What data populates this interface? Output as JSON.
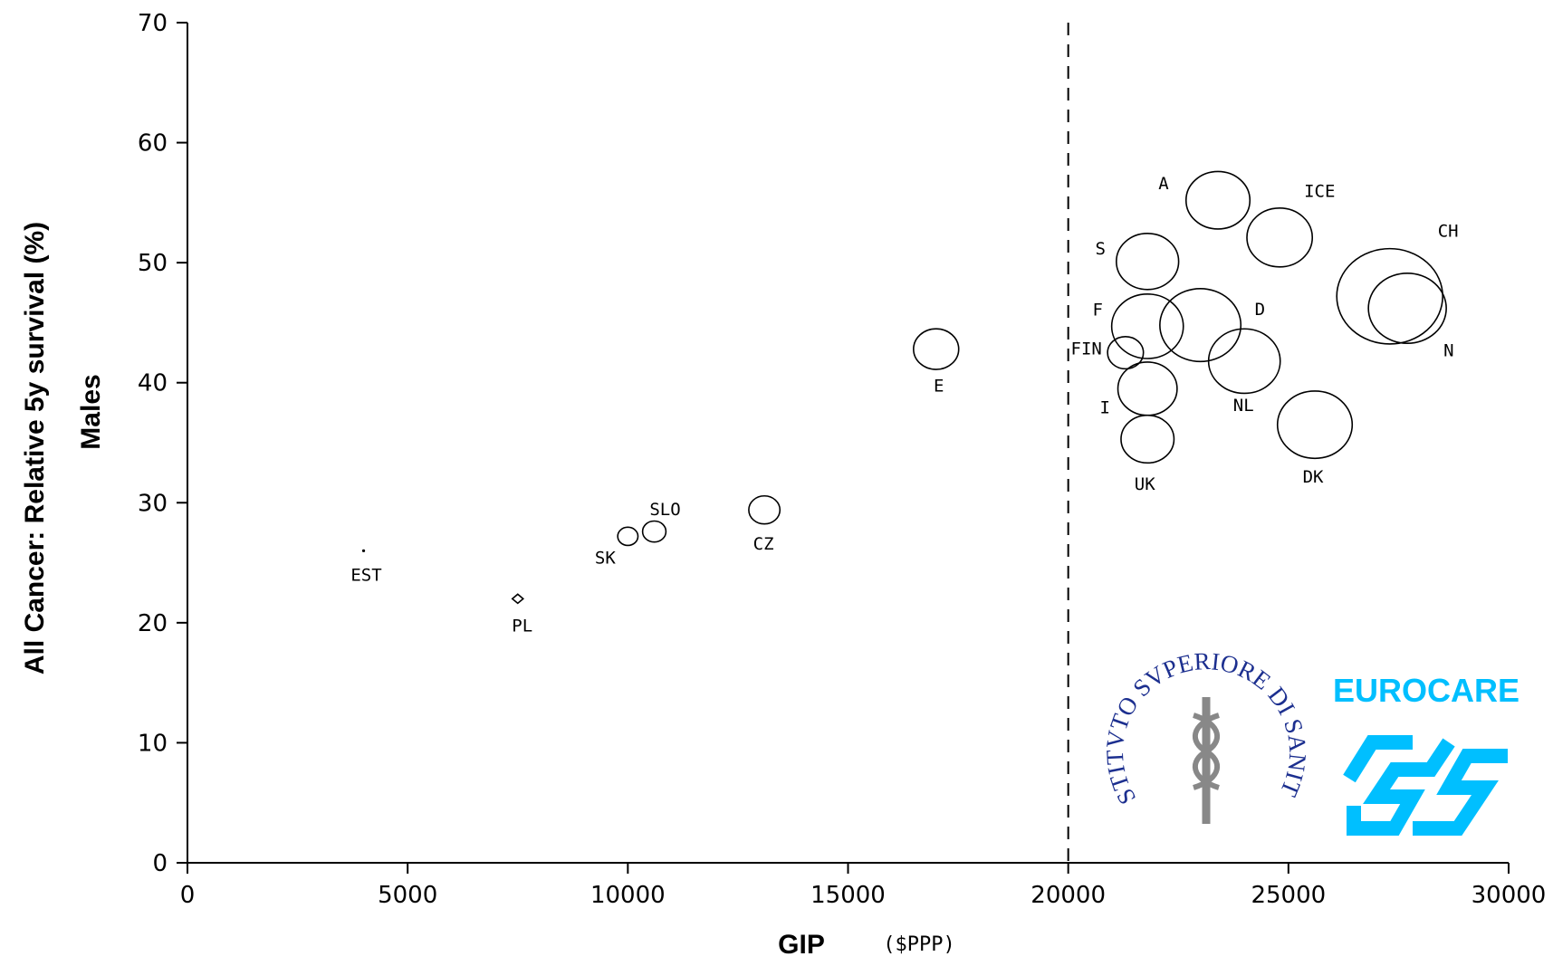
{
  "chart_data": {
    "type": "scatter",
    "subtype": "bubble",
    "ylabel_line1": "All Cancer: Relative 5y survival (%)",
    "ylabel_line2": "Males",
    "xlabel": "GIP",
    "xlabel_unit": "($PPP)",
    "xlim": [
      0,
      30000
    ],
    "ylim": [
      0,
      70
    ],
    "x_ticks": [
      0,
      5000,
      10000,
      15000,
      20000,
      25000,
      30000
    ],
    "y_ticks": [
      0,
      10,
      20,
      30,
      40,
      50,
      60,
      70
    ],
    "grid": false,
    "reference_line": {
      "x": 20000,
      "style": "dashed"
    },
    "points": [
      {
        "label": "EST",
        "x": 4000,
        "y": 26,
        "r_rel": 0.1
      },
      {
        "label": "PL",
        "x": 7500,
        "y": 22,
        "r_rel": 0.7
      },
      {
        "label": "SK",
        "x": 10000,
        "y": 27.2,
        "r_rel": 1.3
      },
      {
        "label": "SLO",
        "x": 10600,
        "y": 27.6,
        "r_rel": 1.5
      },
      {
        "label": "CZ",
        "x": 13100,
        "y": 29.4,
        "r_rel": 2.0
      },
      {
        "label": "E",
        "x": 17000,
        "y": 42.8,
        "r_rel": 2.9
      },
      {
        "label": "A",
        "x": 23400,
        "y": 55.2,
        "r_rel": 4.1
      },
      {
        "label": "ICE",
        "x": 24800,
        "y": 52.1,
        "r_rel": 4.2
      },
      {
        "label": "CH",
        "x": 27300,
        "y": 47.2,
        "r_rel": 6.8
      },
      {
        "label": "S",
        "x": 21800,
        "y": 50.1,
        "r_rel": 4.0
      },
      {
        "label": "D",
        "x": 23000,
        "y": 44.8,
        "r_rel": 5.2
      },
      {
        "label": "F",
        "x": 21800,
        "y": 44.7,
        "r_rel": 4.6
      },
      {
        "label": "FIN",
        "x": 21300,
        "y": 42.5,
        "r_rel": 2.3
      },
      {
        "label": "N",
        "x": 27700,
        "y": 46.2,
        "r_rel": 5.0
      },
      {
        "label": "NL",
        "x": 24000,
        "y": 41.8,
        "r_rel": 4.6
      },
      {
        "label": "I",
        "x": 21800,
        "y": 39.5,
        "r_rel": 3.8
      },
      {
        "label": "UK",
        "x": 21800,
        "y": 35.3,
        "r_rel": 3.4
      },
      {
        "label": "DK",
        "x": 25600,
        "y": 36.5,
        "r_rel": 4.8
      }
    ]
  },
  "logos": {
    "iss_text": "ISTITVTO SVPERIORE DI SANITA",
    "eurocare_text": "EUROCARE",
    "eurocare_color": "#00bfff",
    "iss_color": "#1c2f8f"
  }
}
